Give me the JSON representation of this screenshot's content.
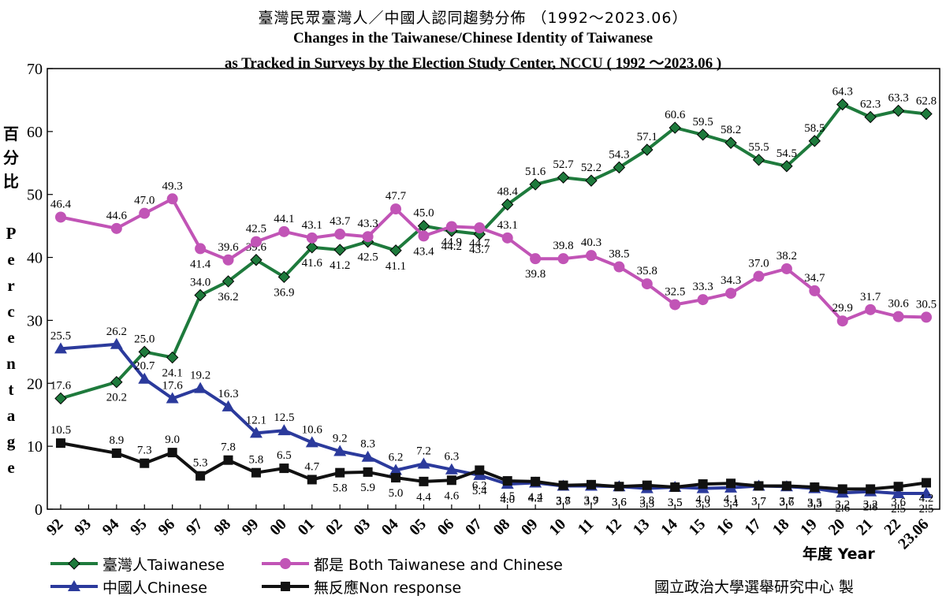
{
  "chart_data": {
    "type": "line",
    "title": "臺灣民眾臺灣人／中國人認同趨勢分佈 （1992～2023.06）",
    "subtitle_line1": "Changes in the Taiwanese/Chinese Identity of Taiwanese",
    "subtitle_line2": "as Tracked in Surveys by the Election Study Center, NCCU ( 1992 ～2023.06 )",
    "ylabel_zh": "百分比",
    "ylabel_en": "Percentage",
    "xlabel": "年度 Year",
    "ylim": [
      0,
      70
    ],
    "yticks": [
      "0",
      "10",
      "20",
      "30",
      "40",
      "50",
      "60",
      "70"
    ],
    "categories": [
      "92",
      "93",
      "94",
      "95",
      "96",
      "97",
      "98",
      "99",
      "00",
      "01",
      "02",
      "03",
      "04",
      "05",
      "06",
      "07",
      "08",
      "09",
      "10",
      "11",
      "12",
      "13",
      "14",
      "15",
      "16",
      "17",
      "18",
      "19",
      "20",
      "21",
      "22",
      "23.06"
    ],
    "series": [
      {
        "name": "臺灣人Taiwanese",
        "color": "#1e7a3c",
        "marker": "diamond",
        "values": [
          17.6,
          null,
          20.2,
          25.0,
          24.1,
          34.0,
          36.2,
          39.6,
          36.9,
          41.6,
          41.2,
          42.5,
          41.1,
          45.0,
          44.2,
          43.7,
          48.4,
          51.6,
          52.7,
          52.2,
          54.3,
          57.1,
          60.6,
          59.5,
          58.2,
          55.5,
          54.5,
          58.5,
          64.3,
          62.3,
          63.3,
          62.8
        ],
        "labels": [
          "17.6",
          "",
          "20.2",
          "25.0",
          "24.1",
          "34.0",
          "36.2",
          "39.6",
          "36.9",
          "41.6",
          "41.2",
          "42.5",
          "41.1",
          "45.0",
          "44.2",
          "43.7",
          "48.4",
          "51.6",
          "52.7",
          "52.2",
          "54.3",
          "57.1",
          "60.6",
          "59.5",
          "58.2",
          "55.5",
          "54.5",
          "58.5",
          "64.3",
          "62.3",
          "63.3",
          "62.8"
        ]
      },
      {
        "name": "都是 Both Taiwanese and Chinese",
        "color": "#c154b6",
        "marker": "circle",
        "values": [
          46.4,
          null,
          44.6,
          47.0,
          49.3,
          41.4,
          39.6,
          42.5,
          44.1,
          43.1,
          43.7,
          43.3,
          47.7,
          43.4,
          44.9,
          44.7,
          43.1,
          39.8,
          39.8,
          40.3,
          38.5,
          35.8,
          32.5,
          33.3,
          34.3,
          37.0,
          38.2,
          34.7,
          29.9,
          31.7,
          30.6,
          30.5
        ],
        "labels": [
          "46.4",
          "",
          "44.6",
          "47.0",
          "49.3",
          "41.4",
          "39.6",
          "42.5",
          "44.1",
          "43.1",
          "43.7",
          "43.3",
          "47.7",
          "43.4",
          "44.9",
          "44.7",
          "43.1",
          "39.8",
          "39.8",
          "40.3",
          "38.5",
          "35.8",
          "32.5",
          "33.3",
          "34.3",
          "37.0",
          "38.2",
          "34.7",
          "29.9",
          "31.7",
          "30.6",
          "30.5"
        ]
      },
      {
        "name": "中國人Chinese",
        "color": "#2b3a9c",
        "marker": "triangle",
        "values": [
          25.5,
          null,
          26.2,
          20.7,
          17.6,
          19.2,
          16.3,
          12.1,
          12.5,
          10.6,
          9.2,
          8.3,
          6.2,
          7.2,
          6.3,
          5.4,
          4.0,
          4.2,
          3.7,
          3.7,
          3.6,
          3.3,
          3.5,
          3.3,
          3.4,
          3.7,
          3.6,
          3.3,
          2.6,
          2.8,
          2.5,
          2.5
        ],
        "labels": [
          "25.5",
          "",
          "26.2",
          "20.7",
          "17.6",
          "19.2",
          "16.3",
          "12.1",
          "12.5",
          "10.6",
          "9.2",
          "8.3",
          "6.2",
          "7.2",
          "6.3",
          "5.4",
          "4.0",
          "4.2",
          "3.7",
          "3.7",
          "3.6",
          "3.3",
          "3.5",
          "3.3",
          "3.4",
          "3.7",
          "3.6",
          "3.3",
          "2.6",
          "2.8",
          "2.5",
          "2.5"
        ]
      },
      {
        "name": "無反應Non response",
        "color": "#111111",
        "marker": "square",
        "values": [
          10.5,
          null,
          8.9,
          7.3,
          9.0,
          5.3,
          7.8,
          5.8,
          6.5,
          4.7,
          5.8,
          5.9,
          5.0,
          4.4,
          4.6,
          6.2,
          4.5,
          4.4,
          3.8,
          3.9,
          3.6,
          3.8,
          3.5,
          4.0,
          4.1,
          3.7,
          3.7,
          3.5,
          3.2,
          3.2,
          3.6,
          4.2
        ],
        "labels": [
          "10.5",
          "",
          "8.9",
          "7.3",
          "9.0",
          "5.3",
          "7.8",
          "5.8",
          "6.5",
          "4.7",
          "5.8",
          "5.9",
          "5.0",
          "4.4",
          "4.6",
          "6.2",
          "4.5",
          "4.4",
          "3.8",
          "3.9",
          "3.6",
          "3.8",
          "3.5",
          "4.0",
          "4.1",
          "3.7",
          "3.7",
          "3.5",
          "3.2",
          "3.2",
          "3.6",
          "4.2"
        ]
      }
    ],
    "grid": false,
    "legend_position": "bottom-left"
  },
  "legend": {
    "taiwanese": "臺灣人Taiwanese",
    "both": "都是 Both Taiwanese and Chinese",
    "chinese": "中國人Chinese",
    "nonresponse": "無反應Non response"
  },
  "credit": "國立政治大學選舉研究中心 製",
  "colors": {
    "taiwanese": "#1e7a3c",
    "both": "#c154b6",
    "chinese": "#2b3a9c",
    "nonresponse": "#111111"
  }
}
